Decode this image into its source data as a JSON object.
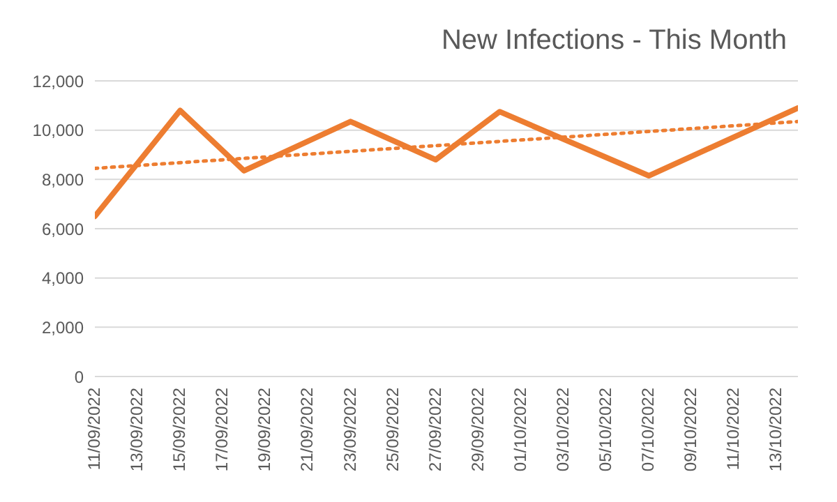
{
  "chart_data": {
    "type": "line",
    "title": "New Infections - This Month",
    "x": [
      "2022-09-11",
      "2022-09-15",
      "2022-09-18",
      "2022-09-23",
      "2022-09-27",
      "2022-09-30",
      "2022-10-07",
      "2022-10-14"
    ],
    "series": [
      {
        "color": "#ed7d31",
        "values": [
          6500,
          10800,
          8350,
          10350,
          8800,
          10750,
          8150,
          10900
        ]
      },
      {
        "type": "line",
        "line_style": "dotted",
        "color": "#ed7d31",
        "x": [
          "2022-09-11",
          "2022-10-14"
        ],
        "values": [
          8450,
          10350
        ]
      }
    ],
    "xlim": [
      "2022-09-11",
      "2022-10-14"
    ],
    "xticks": [
      {
        "value": "2022-09-11",
        "label": "11/09/2022"
      },
      {
        "value": "2022-09-13",
        "label": "13/09/2022"
      },
      {
        "value": "2022-09-15",
        "label": "15/09/2022"
      },
      {
        "value": "2022-09-17",
        "label": "17/09/2022"
      },
      {
        "value": "2022-09-19",
        "label": "19/09/2022"
      },
      {
        "value": "2022-09-21",
        "label": "21/09/2022"
      },
      {
        "value": "2022-09-23",
        "label": "23/09/2022"
      },
      {
        "value": "2022-09-25",
        "label": "25/09/2022"
      },
      {
        "value": "2022-09-27",
        "label": "27/09/2022"
      },
      {
        "value": "2022-09-29",
        "label": "29/09/2022"
      },
      {
        "value": "2022-10-01",
        "label": "01/10/2022"
      },
      {
        "value": "2022-10-03",
        "label": "03/10/2022"
      },
      {
        "value": "2022-10-05",
        "label": "05/10/2022"
      },
      {
        "value": "2022-10-07",
        "label": "07/10/2022"
      },
      {
        "value": "2022-10-09",
        "label": "09/10/2022"
      },
      {
        "value": "2022-10-11",
        "label": "11/10/2022"
      },
      {
        "value": "2022-10-13",
        "label": "13/10/2022"
      }
    ],
    "ylim": [
      0,
      12000
    ],
    "yticks": [
      {
        "value": 0,
        "label": "0"
      },
      {
        "value": 2000,
        "label": "2,000"
      },
      {
        "value": 4000,
        "label": "4,000"
      },
      {
        "value": 6000,
        "label": "6,000"
      },
      {
        "value": 8000,
        "label": "8,000"
      },
      {
        "value": 10000,
        "label": "10,000"
      },
      {
        "value": 12000,
        "label": "12,000"
      }
    ],
    "grid": "y",
    "marker": "none",
    "line_style": "solid"
  }
}
